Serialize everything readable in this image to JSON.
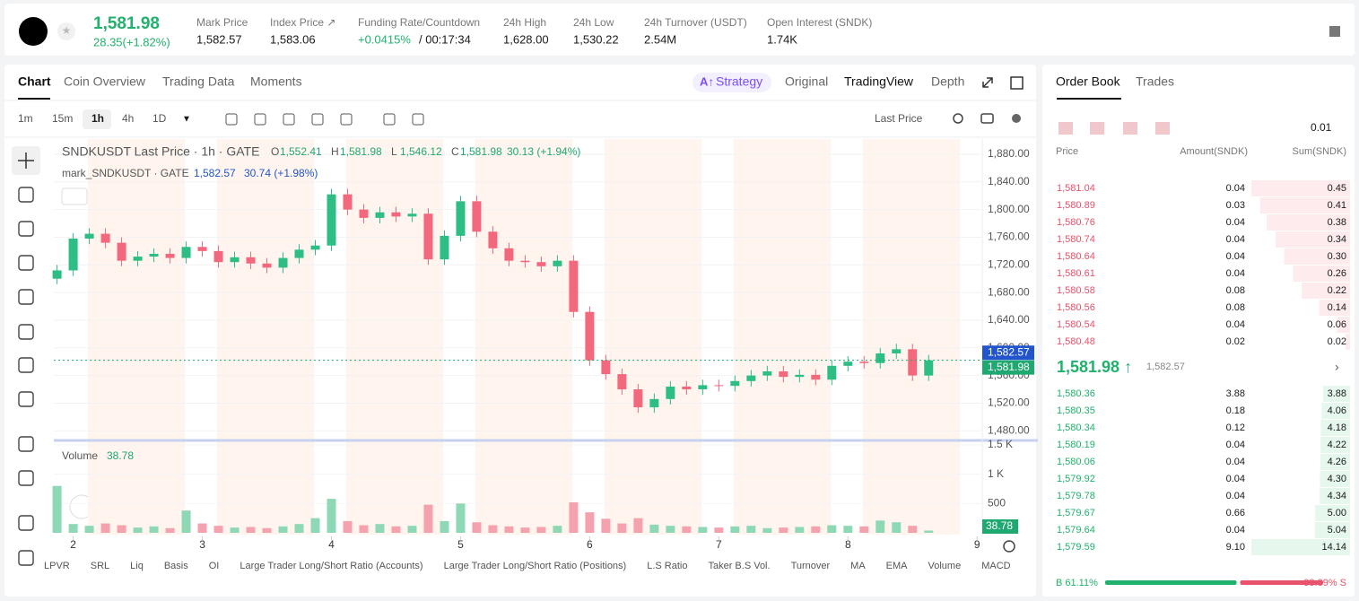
{
  "header": {
    "price": "1,581.98",
    "change": "28.35(+1.82%)",
    "stats": [
      {
        "label": "Mark Price",
        "value": "1,582.57"
      },
      {
        "label": "Index Price ↗",
        "value": "1,583.06"
      },
      {
        "label": "Funding Rate/Countdown",
        "value": "+0.0415%",
        "extra": "/ 00:17:34"
      },
      {
        "label": "24h High",
        "value": "1,628.00"
      },
      {
        "label": "24h Low",
        "value": "1,530.22"
      },
      {
        "label": "24h Turnover (USDT)",
        "value": "2.54M"
      },
      {
        "label": "Open Interest (SNDK)",
        "value": "1.74K"
      }
    ]
  },
  "tabs": [
    "Chart",
    "Coin Overview",
    "Trading Data",
    "Moments"
  ],
  "view_tabs": [
    "Strategy",
    "Original",
    "TradingView",
    "Depth"
  ],
  "intervals": [
    "1m",
    "15m",
    "1h",
    "4h",
    "1D"
  ],
  "price_type": "Last Price",
  "indicators": [
    "LPVR",
    "SRL",
    "Liq",
    "Basis",
    "OI",
    "Large Trader Long/Short Ratio (Accounts)",
    "Large Trader Long/Short Ratio (Positions)",
    "L.S Ratio",
    "Taker B.S Vol.",
    "Turnover",
    "MA",
    "EMA",
    "Volume",
    "MACD"
  ],
  "chart_data": [
    {
      "type": "candlestick",
      "title": "SNDKUSDT Last Price · 1h · GATE",
      "ohlc": [
        {
          "key": "O",
          "value": "1,552.41"
        },
        {
          "key": "H",
          "value": "1,581.98"
        },
        {
          "key": "L",
          "value": "1,546.12"
        },
        {
          "key": "C",
          "value": "1,581.98"
        }
      ],
      "change": "30.13 (+1.94%)",
      "mark_title": "mark_SNDKUSDT · GATE",
      "mark_value": "1,582.57",
      "mark_change": "30.74 (+1.98%)",
      "up_color": "#2dbd85",
      "down_color": "#f2687d",
      "x": [
        1.875,
        2,
        2.125,
        2.25,
        2.375,
        2.5,
        2.625,
        2.75,
        2.875,
        3,
        3.125,
        3.25,
        3.375,
        3.5,
        3.625,
        3.75,
        3.875,
        4,
        4.125,
        4.25,
        4.375,
        4.5,
        4.625,
        4.75,
        4.875,
        5,
        5.125,
        5.25,
        5.375,
        5.5,
        5.625,
        5.75,
        5.875,
        6,
        6.125,
        6.25,
        6.375,
        6.5,
        6.625,
        6.75,
        6.875,
        7,
        7.125,
        7.25,
        7.375,
        7.5,
        7.625,
        7.75,
        7.875,
        8,
        8.125,
        8.25,
        8.375,
        8.5,
        8.625
      ],
      "close": [
        1712,
        1758,
        1765,
        1752,
        1726,
        1732,
        1736,
        1730,
        1746,
        1740,
        1724,
        1731,
        1722,
        1716,
        1730,
        1742,
        1748,
        1822,
        1800,
        1788,
        1796,
        1790,
        1794,
        1728,
        1762,
        1812,
        1768,
        1744,
        1726,
        1724,
        1718,
        1726,
        1652,
        1582,
        1562,
        1540,
        1514,
        1526,
        1544,
        1540,
        1546,
        1545,
        1552,
        1560,
        1566,
        1558,
        1561,
        1554,
        1574,
        1580,
        1578,
        1592,
        1598,
        1560,
        1581.98
      ],
      "xlim": [
        1.85,
        9.04
      ],
      "xticks": [
        2,
        3,
        4,
        5,
        6,
        7,
        8,
        9
      ],
      "ylim": [
        1470,
        1902
      ],
      "yticks": [
        {
          "value": 1480,
          "label": "1,480.00"
        },
        {
          "value": 1520,
          "label": "1,520.00"
        },
        {
          "value": 1560,
          "label": "1,560.00"
        },
        {
          "value": 1600,
          "label": "1,600.00"
        },
        {
          "value": 1640,
          "label": "1,640.00"
        },
        {
          "value": 1680,
          "label": "1,680.00"
        },
        {
          "value": 1720,
          "label": "1,720.00"
        },
        {
          "value": 1760,
          "label": "1,760.00"
        },
        {
          "value": 1800,
          "label": "1,800.00"
        },
        {
          "value": 1840,
          "label": "1,840.00"
        },
        {
          "value": 1880,
          "label": "1,880.00"
        }
      ],
      "price_lines": [
        {
          "value": 1582.57,
          "label": "1,582.57",
          "color": "#2255cc"
        },
        {
          "value": 1581.98,
          "label": "1,581.98",
          "color": "#1fa870"
        }
      ]
    },
    {
      "type": "bar",
      "title": "Volume",
      "last": "38.78",
      "x": [
        1.875,
        2,
        2.125,
        2.25,
        2.375,
        2.5,
        2.625,
        2.75,
        2.875,
        3,
        3.125,
        3.25,
        3.375,
        3.5,
        3.625,
        3.75,
        3.875,
        4,
        4.125,
        4.25,
        4.375,
        4.5,
        4.625,
        4.75,
        4.875,
        5,
        5.125,
        5.25,
        5.375,
        5.5,
        5.625,
        5.75,
        5.875,
        6,
        6.125,
        6.25,
        6.375,
        6.5,
        6.625,
        6.75,
        6.875,
        7,
        7.125,
        7.25,
        7.375,
        7.5,
        7.625,
        7.75,
        7.875,
        8,
        8.125,
        8.25,
        8.375,
        8.5,
        8.625
      ],
      "values": [
        800,
        150,
        120,
        160,
        130,
        90,
        110,
        80,
        380,
        160,
        120,
        90,
        100,
        80,
        110,
        150,
        250,
        580,
        200,
        130,
        150,
        110,
        120,
        480,
        200,
        500,
        180,
        130,
        110,
        90,
        100,
        120,
        520,
        350,
        240,
        160,
        250,
        140,
        120,
        110,
        100,
        90,
        110,
        120,
        80,
        90,
        100,
        110,
        130,
        120,
        110,
        210,
        180,
        120,
        38.78
      ],
      "ylim": [
        0,
        1530
      ],
      "yticks": [
        500,
        {
          "value": 1000,
          "label": "1 K"
        },
        {
          "value": 1500,
          "label": "1.5 K"
        }
      ]
    }
  ],
  "order_book": {
    "tabs": [
      "Order Book",
      "Trades"
    ],
    "step": "0.01",
    "columns": [
      "Price",
      "Amount(SNDK)",
      "Sum(SNDK)"
    ],
    "asks": [
      [
        "1,581.04",
        "0.04",
        "0.45"
      ],
      [
        "1,580.89",
        "0.03",
        "0.41"
      ],
      [
        "1,580.76",
        "0.04",
        "0.38"
      ],
      [
        "1,580.74",
        "0.04",
        "0.34"
      ],
      [
        "1,580.64",
        "0.04",
        "0.30"
      ],
      [
        "1,580.61",
        "0.04",
        "0.26"
      ],
      [
        "1,580.58",
        "0.08",
        "0.22"
      ],
      [
        "1,580.56",
        "0.08",
        "0.14"
      ],
      [
        "1,580.54",
        "0.04",
        "0.06"
      ],
      [
        "1,580.48",
        "0.02",
        "0.02"
      ]
    ],
    "mid_price": "1,581.98 ↑",
    "mid_mark": "1,582.57",
    "bids": [
      [
        "1,580.36",
        "3.88",
        "3.88"
      ],
      [
        "1,580.35",
        "0.18",
        "4.06"
      ],
      [
        "1,580.34",
        "0.12",
        "4.18"
      ],
      [
        "1,580.19",
        "0.04",
        "4.22"
      ],
      [
        "1,580.06",
        "0.04",
        "4.26"
      ],
      [
        "1,579.92",
        "0.04",
        "4.30"
      ],
      [
        "1,579.78",
        "0.04",
        "4.34"
      ],
      [
        "1,579.67",
        "0.66",
        "5.00"
      ],
      [
        "1,579.64",
        "0.04",
        "5.04"
      ],
      [
        "1,579.59",
        "9.10",
        "14.14"
      ]
    ],
    "buy": 61.11,
    "buy_label": "B 61.11%",
    "sell": 38.89,
    "sell_label": "38.89% S"
  }
}
